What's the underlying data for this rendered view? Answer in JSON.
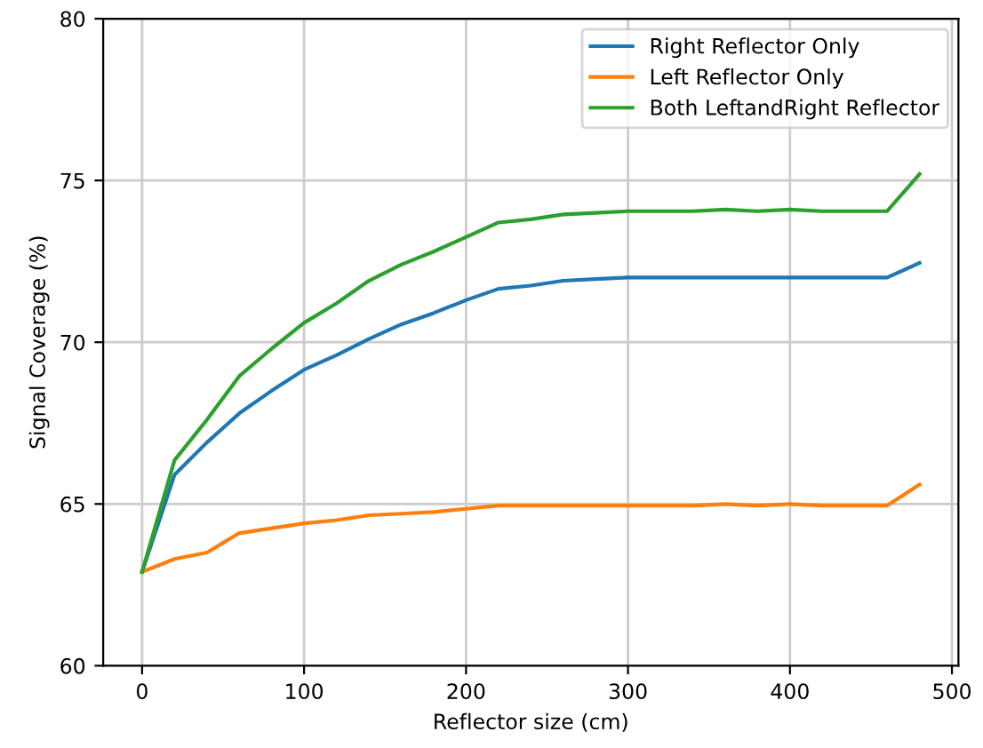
{
  "chart_data": {
    "type": "line",
    "xlabel": "Reflector size (cm)",
    "ylabel": "Signal Coverage (%)",
    "x": [
      0,
      20,
      40,
      60,
      80,
      100,
      120,
      140,
      160,
      180,
      200,
      220,
      240,
      260,
      280,
      300,
      320,
      340,
      360,
      380,
      400,
      420,
      440,
      460,
      480
    ],
    "series": [
      {
        "name": "Right Reflector Only",
        "color": "#1f77b4",
        "values": [
          62.9,
          65.9,
          66.9,
          67.8,
          68.5,
          69.15,
          69.6,
          70.1,
          70.55,
          70.9,
          71.3,
          71.65,
          71.75,
          71.9,
          71.95,
          72,
          72,
          72,
          72,
          72,
          72,
          72,
          72,
          72,
          72.45
        ]
      },
      {
        "name": "Left Reflector Only",
        "color": "#ff7f0e",
        "values": [
          62.9,
          63.3,
          63.5,
          64.1,
          64.25,
          64.4,
          64.5,
          64.65,
          64.7,
          64.75,
          64.85,
          64.95,
          64.95,
          64.95,
          64.95,
          64.95,
          64.95,
          64.95,
          65.0,
          64.95,
          65.0,
          64.95,
          64.95,
          64.95,
          65.6
        ]
      },
      {
        "name": "Both LeftandRight Reflector",
        "color": "#2ca02c",
        "values": [
          62.9,
          66.35,
          67.6,
          68.95,
          69.8,
          70.6,
          71.2,
          71.9,
          72.4,
          72.8,
          73.25,
          73.7,
          73.8,
          73.95,
          74.0,
          74.05,
          74.05,
          74.05,
          74.1,
          74.05,
          74.1,
          74.05,
          74.05,
          74.05,
          75.2
        ]
      }
    ],
    "xlim": [
      -24,
      504
    ],
    "xticks": [
      0,
      100,
      200,
      300,
      400,
      500
    ],
    "ylim": [
      60,
      80
    ],
    "yticks": [
      60,
      65,
      70,
      75,
      80
    ],
    "grid": true,
    "legend": "top right"
  }
}
